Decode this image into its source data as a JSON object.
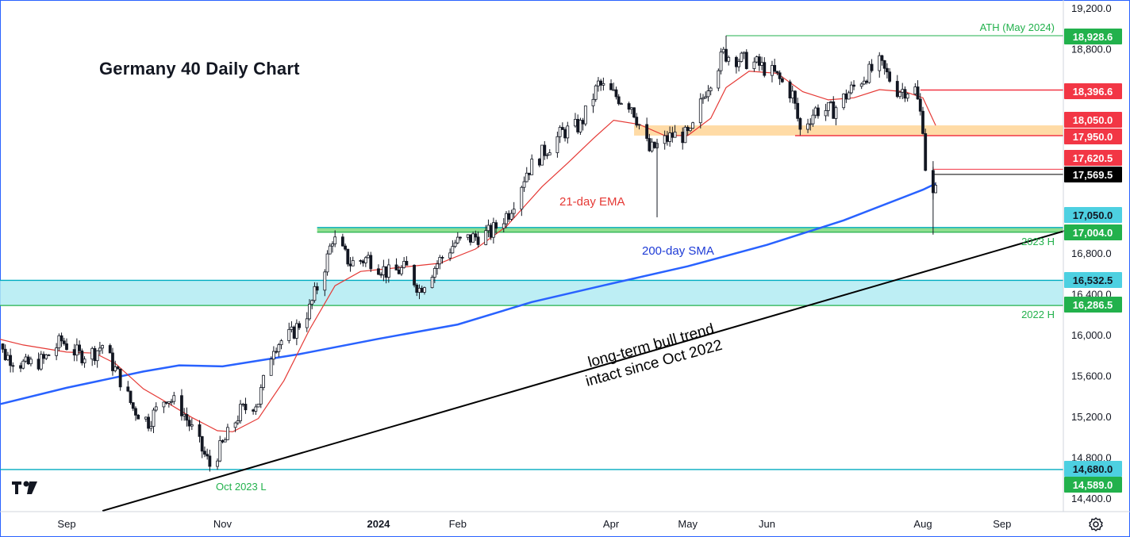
{
  "chart_data": {
    "type": "candlestick",
    "title": "Germany 40 Daily Chart",
    "y_axis": {
      "ylim": [
        14250,
        19280
      ],
      "ticks": [
        19200,
        18800,
        16800,
        16400,
        16000,
        15600,
        15200,
        14800,
        14400
      ],
      "tick_labels": [
        "19,200.0",
        "18,800.0",
        "16,800.0",
        "16,400.0",
        "16,000.0",
        "15,600.0",
        "15,200.0",
        "14,800.0",
        "14,400.0"
      ]
    },
    "x_axis": {
      "labels": [
        {
          "text": "Sep",
          "date": "2023-09-01",
          "bold": false
        },
        {
          "text": "Nov",
          "date": "2023-11-01",
          "bold": false
        },
        {
          "text": "2024",
          "date": "2024-01-01",
          "bold": true
        },
        {
          "text": "Feb",
          "date": "2024-02-01",
          "bold": false
        },
        {
          "text": "Apr",
          "date": "2024-04-01",
          "bold": false
        },
        {
          "text": "May",
          "date": "2024-05-01",
          "bold": false
        },
        {
          "text": "Jun",
          "date": "2024-06-01",
          "bold": false
        },
        {
          "text": "Aug",
          "date": "2024-08-01",
          "bold": false
        },
        {
          "text": "Sep",
          "date": "2024-09-01",
          "bold": false
        }
      ]
    },
    "price_levels": [
      {
        "value": 18928.6,
        "label": "18,928.6",
        "color": "#22b14c",
        "text_color": "#ffffff"
      },
      {
        "value": 18396.6,
        "label": "18,396.6",
        "color": "#f23645",
        "text_color": "#ffffff"
      },
      {
        "value": 18050.0,
        "label": "18,050.0",
        "color": "#f23645",
        "text_color": "#ffffff"
      },
      {
        "value": 17950.0,
        "label": "17,950.0",
        "color": "#f23645",
        "text_color": "#ffffff"
      },
      {
        "value": 17620.5,
        "label": "17,620.5",
        "color": "#f23645",
        "text_color": "#ffffff"
      },
      {
        "value": 17569.5,
        "label": "17,569.5",
        "color": "#000000",
        "text_color": "#ffffff"
      },
      {
        "value": 17050.0,
        "label": "17,050.0",
        "color": "#4dd0e1",
        "text_color": "#131722"
      },
      {
        "value": 17004.0,
        "label": "17,004.0",
        "color": "#22b14c",
        "text_color": "#ffffff"
      },
      {
        "value": 16532.5,
        "label": "16,532.5",
        "color": "#4dd0e1",
        "text_color": "#131722"
      },
      {
        "value": 16286.5,
        "label": "16,286.5",
        "color": "#22b14c",
        "text_color": "#ffffff"
      },
      {
        "value": 14680.0,
        "label": "14,680.0",
        "color": "#4dd0e1",
        "text_color": "#131722"
      },
      {
        "value": 14589.0,
        "label": "14,589.0",
        "color": "#22b14c",
        "text_color": "#ffffff"
      }
    ],
    "zones": [
      {
        "name": "resistance-zone",
        "from": 17950,
        "to": 18050,
        "start": "2024-04-10",
        "color": "#ffcc80"
      },
      {
        "name": "2023-high-zone",
        "from": 17004,
        "to": 17050,
        "start": "2023-12-08",
        "color": "#7dd87d"
      },
      {
        "name": "2022-high-zone",
        "from": 16286.5,
        "to": 16532.5,
        "start": "2023-08-01",
        "color": "#b2ebf2"
      }
    ],
    "annotations": [
      {
        "text": "ATH (May 2024)",
        "color": "#22b14c"
      },
      {
        "text": "2023 H",
        "color": "#22b14c"
      },
      {
        "text": "2022 H",
        "color": "#22b14c"
      },
      {
        "text": "Oct 2023 L",
        "color": "#22b14c"
      },
      {
        "text": "21-day EMA",
        "color": "#e53935"
      },
      {
        "text": "200-day SMA",
        "color": "#1e3bd6"
      },
      {
        "text": "long-term bull trend",
        "color": "#000000"
      },
      {
        "text": "intact since Oct 2022",
        "color": "#000000"
      }
    ],
    "trendline": {
      "start_date": "2023-09-15",
      "start_value": 14275,
      "end_date": "2024-09-30",
      "end_value": 17050
    },
    "ema21": [
      [
        "2023-08-01",
        15985
      ],
      [
        "2023-08-15",
        15900
      ],
      [
        "2023-09-01",
        15830
      ],
      [
        "2023-09-12",
        15820
      ],
      [
        "2023-09-20",
        15720
      ],
      [
        "2023-10-01",
        15470
      ],
      [
        "2023-10-10",
        15340
      ],
      [
        "2023-10-20",
        15190
      ],
      [
        "2023-10-30",
        15060
      ],
      [
        "2023-11-05",
        15050
      ],
      [
        "2023-11-15",
        15180
      ],
      [
        "2023-11-25",
        15550
      ],
      [
        "2023-12-05",
        16050
      ],
      [
        "2023-12-15",
        16480
      ],
      [
        "2023-12-25",
        16620
      ],
      [
        "2024-01-10",
        16660
      ],
      [
        "2024-01-25",
        16700
      ],
      [
        "2024-02-08",
        16840
      ],
      [
        "2024-02-20",
        17060
      ],
      [
        "2024-03-05",
        17450
      ],
      [
        "2024-03-15",
        17680
      ],
      [
        "2024-03-25",
        17920
      ],
      [
        "2024-04-02",
        18100
      ],
      [
        "2024-04-12",
        18060
      ],
      [
        "2024-04-22",
        17950
      ],
      [
        "2024-05-01",
        17950
      ],
      [
        "2024-05-10",
        18120
      ],
      [
        "2024-05-16",
        18420
      ],
      [
        "2024-05-25",
        18580
      ],
      [
        "2024-06-05",
        18560
      ],
      [
        "2024-06-15",
        18380
      ],
      [
        "2024-06-25",
        18300
      ],
      [
        "2024-07-05",
        18320
      ],
      [
        "2024-07-15",
        18400
      ],
      [
        "2024-07-25",
        18380
      ],
      [
        "2024-08-01",
        18320
      ],
      [
        "2024-08-06",
        18050
      ]
    ],
    "sma200": [
      [
        "2023-08-01",
        15290
      ],
      [
        "2023-09-01",
        15480
      ],
      [
        "2023-10-01",
        15640
      ],
      [
        "2023-10-15",
        15700
      ],
      [
        "2023-11-01",
        15690
      ],
      [
        "2023-12-01",
        15810
      ],
      [
        "2024-01-01",
        15960
      ],
      [
        "2024-02-01",
        16100
      ],
      [
        "2024-03-01",
        16320
      ],
      [
        "2024-04-01",
        16500
      ],
      [
        "2024-05-01",
        16670
      ],
      [
        "2024-06-01",
        16880
      ],
      [
        "2024-07-01",
        17120
      ],
      [
        "2024-08-01",
        17420
      ],
      [
        "2024-08-06",
        17480
      ]
    ],
    "candles_description": "Daily candles, open-high-low-close (OHLC), reconstructed from the price path shown",
    "candle_path": [
      [
        "2023-08-01",
        16020
      ],
      [
        "2023-08-08",
        15800
      ],
      [
        "2023-08-16",
        15700
      ],
      [
        "2023-08-23",
        15750
      ],
      [
        "2023-08-30",
        15940
      ],
      [
        "2023-09-06",
        15800
      ],
      [
        "2023-09-12",
        15830
      ],
      [
        "2023-09-15",
        15900
      ],
      [
        "2023-09-22",
        15560
      ],
      [
        "2023-09-27",
        15280
      ],
      [
        "2023-10-03",
        15150
      ],
      [
        "2023-10-10",
        15400
      ],
      [
        "2023-10-16",
        15270
      ],
      [
        "2023-10-23",
        14920
      ],
      [
        "2023-10-27",
        14720
      ],
      [
        "2023-11-01",
        14920
      ],
      [
        "2023-11-08",
        15250
      ],
      [
        "2023-11-15",
        15350
      ],
      [
        "2023-11-21",
        15900
      ],
      [
        "2023-11-28",
        16000
      ],
      [
        "2023-12-05",
        16250
      ],
      [
        "2023-12-12",
        16750
      ],
      [
        "2023-12-14",
        16950
      ],
      [
        "2023-12-21",
        16700
      ],
      [
        "2023-12-28",
        16750
      ],
      [
        "2024-01-05",
        16600
      ],
      [
        "2024-01-12",
        16650
      ],
      [
        "2024-01-17",
        16450
      ],
      [
        "2024-01-24",
        16700
      ],
      [
        "2024-01-31",
        16900
      ],
      [
        "2024-02-07",
        16950
      ],
      [
        "2024-02-14",
        17000
      ],
      [
        "2024-02-21",
        17200
      ],
      [
        "2024-02-28",
        17600
      ],
      [
        "2024-03-06",
        17800
      ],
      [
        "2024-03-13",
        17980
      ],
      [
        "2024-03-20",
        18050
      ],
      [
        "2024-03-27",
        18450
      ],
      [
        "2024-04-02",
        18350
      ],
      [
        "2024-04-09",
        18250
      ],
      [
        "2024-04-16",
        17800
      ],
      [
        "2024-04-19",
        17850
      ],
      [
        "2024-04-25",
        17950
      ],
      [
        "2024-05-02",
        17950
      ],
      [
        "2024-05-08",
        18400
      ],
      [
        "2024-05-15",
        18750
      ],
      [
        "2024-05-21",
        18700
      ],
      [
        "2024-05-28",
        18650
      ],
      [
        "2024-06-04",
        18550
      ],
      [
        "2024-06-11",
        18350
      ],
      [
        "2024-06-14",
        18000
      ],
      [
        "2024-06-20",
        18200
      ],
      [
        "2024-06-27",
        18200
      ],
      [
        "2024-07-04",
        18400
      ],
      [
        "2024-07-10",
        18550
      ],
      [
        "2024-07-15",
        18650
      ],
      [
        "2024-07-22",
        18400
      ],
      [
        "2024-07-29",
        18400
      ],
      [
        "2024-08-01",
        18050
      ],
      [
        "2024-08-02",
        17650
      ],
      [
        "2024-08-05",
        17350
      ],
      [
        "2024-08-06",
        17400
      ],
      [
        "2024-08-07",
        17569.5
      ]
    ]
  },
  "icons": {
    "logo": "tradingview-logo-icon",
    "settings": "gear-icon"
  }
}
